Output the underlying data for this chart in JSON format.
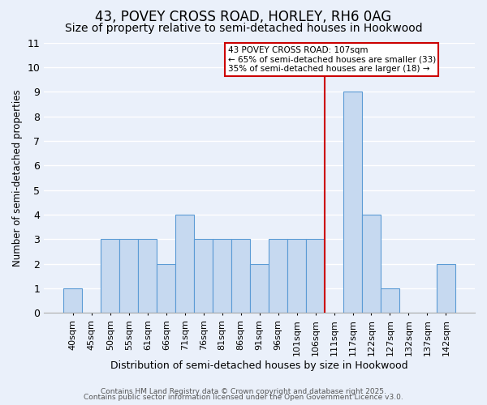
{
  "title1": "43, POVEY CROSS ROAD, HORLEY, RH6 0AG",
  "title2": "Size of property relative to semi-detached houses in Hookwood",
  "xlabel": "Distribution of semi-detached houses by size in Hookwood",
  "ylabel": "Number of semi-detached properties",
  "categories": [
    "40sqm",
    "45sqm",
    "50sqm",
    "55sqm",
    "61sqm",
    "66sqm",
    "71sqm",
    "76sqm",
    "81sqm",
    "86sqm",
    "91sqm",
    "96sqm",
    "101sqm",
    "106sqm",
    "111sqm",
    "117sqm",
    "122sqm",
    "127sqm",
    "132sqm",
    "137sqm",
    "142sqm"
  ],
  "values": [
    1,
    0,
    3,
    3,
    3,
    2,
    4,
    3,
    3,
    3,
    2,
    3,
    3,
    3,
    0,
    9,
    4,
    1,
    0,
    0,
    2
  ],
  "bar_color": "#c6d9f0",
  "bar_edge_color": "#5b9bd5",
  "red_line_color": "#cc0000",
  "ylim": [
    0,
    11
  ],
  "yticks": [
    0,
    1,
    2,
    3,
    4,
    5,
    6,
    7,
    8,
    9,
    10,
    11
  ],
  "annotation_text": "43 POVEY CROSS ROAD: 107sqm\n← 65% of semi-detached houses are smaller (33)\n35% of semi-detached houses are larger (18) →",
  "annotation_box_edge_color": "#cc0000",
  "annotation_box_face_color": "#ffffff",
  "footer1": "Contains HM Land Registry data © Crown copyright and database right 2025.",
  "footer2": "Contains public sector information licensed under the Open Government Licence v3.0.",
  "bg_color": "#eaf0fa",
  "grid_color": "#ffffff",
  "title_fontsize": 12,
  "subtitle_fontsize": 10,
  "bar_width": 1.0,
  "red_line_index": 13.5
}
